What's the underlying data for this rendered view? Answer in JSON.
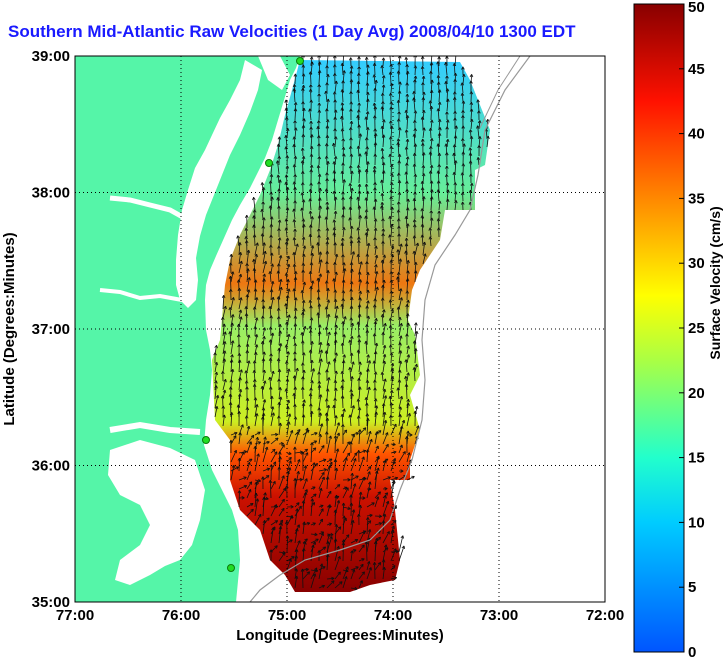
{
  "title": "Southern Mid-Atlantic Raw Velocities (1 Day Avg) 2008/04/10 1300 EDT",
  "x_axis": {
    "label": "Longitude (Degrees:Minutes)",
    "ticks": [
      "77:00",
      "76:00",
      "75:00",
      "74:00",
      "73:00",
      "72:00"
    ]
  },
  "y_axis": {
    "label": "Latitude (Degrees:Minutes)",
    "ticks": [
      "35:00",
      "36:00",
      "37:00",
      "38:00",
      "39:00"
    ]
  },
  "colorbar": {
    "label": "Surface Velocity (cm/s)",
    "ticks": [
      "0",
      "5",
      "10",
      "15",
      "20",
      "25",
      "30",
      "35",
      "40",
      "45",
      "50"
    ],
    "min": 0,
    "max": 50,
    "colormap": "jet"
  },
  "map": {
    "extent_lon": [
      -77,
      -72
    ],
    "extent_lat": [
      35,
      39
    ],
    "land_color": "#55f5a8",
    "water_color": "#ffffff",
    "grid": "dotted",
    "station_marker_color": "#22dd22",
    "station_count": 4
  }
}
